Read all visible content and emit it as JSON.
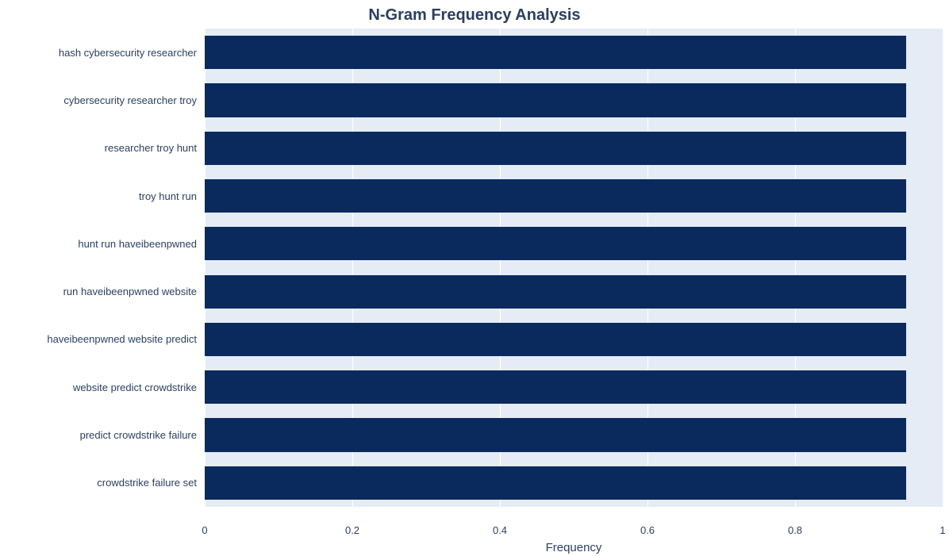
{
  "chart": {
    "type": "bar-horizontal",
    "title": "N-Gram Frequency Analysis",
    "title_fontsize": 20,
    "title_color": "#2a3f5f",
    "xlabel": "Frequency",
    "xlabel_fontsize": 15,
    "tick_fontsize": 13,
    "ylabel_fontsize": 13,
    "background_color": "#e5ecf6",
    "grid_color": "#ffffff",
    "bar_color": "#0a2a5e",
    "xlim_min": 0.0,
    "xlim_max": 1.0,
    "xtick_step": 0.2,
    "xticks": [
      {
        "v": 0.0,
        "pct": 0
      },
      {
        "v": 0.2,
        "pct": 20
      },
      {
        "v": 0.4,
        "pct": 40
      },
      {
        "v": 0.6,
        "pct": 60
      },
      {
        "v": 0.8,
        "pct": 80
      },
      {
        "v": 1.0,
        "pct": 100
      }
    ],
    "bar_max_pct": 95,
    "bar_width_ratio": 0.7,
    "categories": [
      {
        "label": "hash cybersecurity researcher",
        "value": 1.0
      },
      {
        "label": "cybersecurity researcher troy",
        "value": 1.0
      },
      {
        "label": "researcher troy hunt",
        "value": 1.0
      },
      {
        "label": "troy hunt run",
        "value": 1.0
      },
      {
        "label": "hunt run haveibeenpwned",
        "value": 1.0
      },
      {
        "label": "run haveibeenpwned website",
        "value": 1.0
      },
      {
        "label": "haveibeenpwned website predict",
        "value": 1.0
      },
      {
        "label": "website predict crowdstrike",
        "value": 1.0
      },
      {
        "label": "predict crowdstrike failure",
        "value": 1.0
      },
      {
        "label": "crowdstrike failure set",
        "value": 1.0
      }
    ]
  }
}
